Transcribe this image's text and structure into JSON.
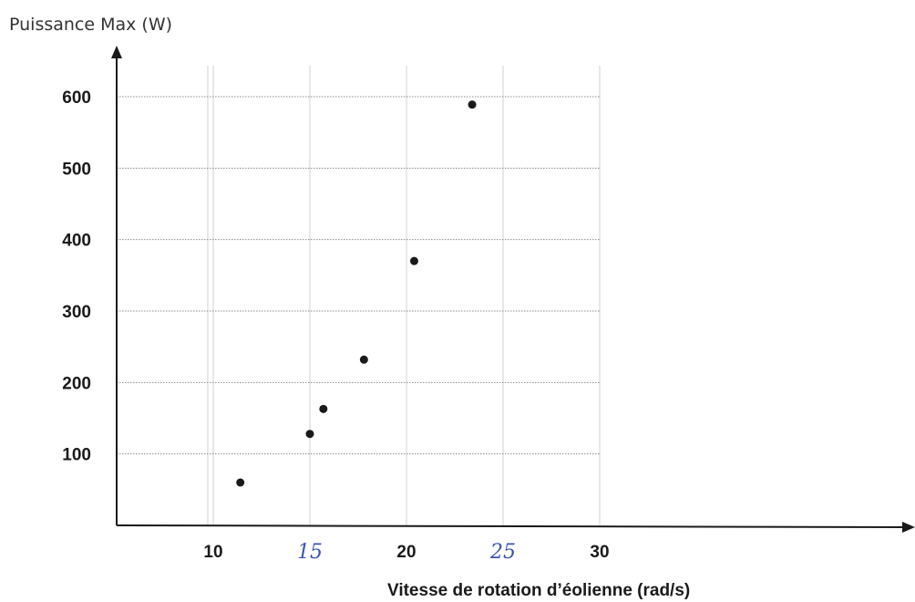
{
  "chart_data": {
    "type": "scatter",
    "title": "",
    "ylabel": "Puissance Max (W)",
    "xlabel": "Vitesse de rotation d’éolienne (rad/s)",
    "x_ticks": [
      "10",
      "20",
      "30"
    ],
    "y_ticks": [
      "100",
      "200",
      "300",
      "400",
      "500",
      "600"
    ],
    "handwritten_annotations": [
      "15",
      "25"
    ],
    "xlim": [
      5,
      30
    ],
    "ylim": [
      0,
      600
    ],
    "grid": true,
    "points": [
      {
        "x": 11.4,
        "y": 60
      },
      {
        "x": 15.0,
        "y": 128
      },
      {
        "x": 15.7,
        "y": 163
      },
      {
        "x": 17.8,
        "y": 232
      },
      {
        "x": 20.4,
        "y": 370
      },
      {
        "x": 23.4,
        "y": 589
      }
    ],
    "colors": {
      "points": "#1a1a1a",
      "axis": "#1a1a1a",
      "grid_major": "#8a8a8a",
      "grid_minor": "#d0d0d0",
      "handwriting": "#3a54b4"
    }
  }
}
